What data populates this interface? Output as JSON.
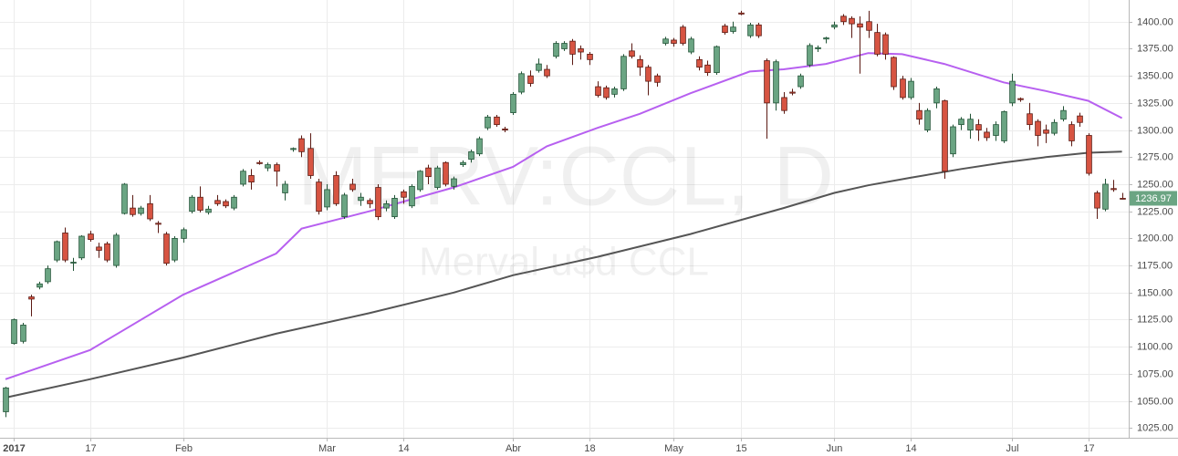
{
  "chart_data": {
    "type": "candlestick",
    "watermark": "MERV:CCL, D",
    "subtitle": "Merval u$d CCL",
    "up_color": "#6ba583",
    "down_color": "#d75442",
    "up_border": "#225437",
    "down_border": "#5b1a13",
    "grid": true,
    "xlim": [
      -0.65,
      132.8
    ],
    "ylim": [
      1016,
      1420
    ],
    "yticks": [
      {
        "value": 1025,
        "label": "1025.00"
      },
      {
        "value": 1050,
        "label": "1050.00"
      },
      {
        "value": 1075,
        "label": "1075.00"
      },
      {
        "value": 1100,
        "label": "1100.00"
      },
      {
        "value": 1125,
        "label": "1125.00"
      },
      {
        "value": 1150,
        "label": "1150.00"
      },
      {
        "value": 1175,
        "label": "1175.00"
      },
      {
        "value": 1200,
        "label": "1200.00"
      },
      {
        "value": 1225,
        "label": "1225.00"
      },
      {
        "value": 1250,
        "label": "1250.00"
      },
      {
        "value": 1275,
        "label": "1275.00"
      },
      {
        "value": 1300,
        "label": "1300.00"
      },
      {
        "value": 1325,
        "label": "1325.00"
      },
      {
        "value": 1350,
        "label": "1350.00"
      },
      {
        "value": 1375,
        "label": "1375.00"
      },
      {
        "value": 1400,
        "label": "1400.00"
      }
    ],
    "xticks": [
      {
        "value": 1,
        "label": "2017"
      },
      {
        "value": 10,
        "label": "17"
      },
      {
        "value": 21,
        "label": "Feb"
      },
      {
        "value": 38,
        "label": "Mar"
      },
      {
        "value": 47,
        "label": "14"
      },
      {
        "value": 60,
        "label": "Abr"
      },
      {
        "value": 69,
        "label": "18"
      },
      {
        "value": 79,
        "label": "May"
      },
      {
        "value": 87,
        "label": "15"
      },
      {
        "value": 98,
        "label": "Jun"
      },
      {
        "value": 107,
        "label": "14"
      },
      {
        "value": 119,
        "label": "Jul"
      },
      {
        "value": 128,
        "label": "17"
      }
    ],
    "open": [
      1040,
      1103,
      1105,
      1146,
      1155,
      1160,
      1180,
      1205,
      1178,
      1182,
      1204,
      1192,
      1195,
      1175,
      1223,
      1228,
      1223,
      1232,
      1214,
      1204,
      1180,
      1200,
      1225,
      1238,
      1224,
      1235,
      1234,
      1228,
      1250,
      1258,
      1270,
      1265,
      1268,
      1242,
      1282,
      1292,
      1283,
      1252,
      1229,
      1258,
      1220,
      1250,
      1235,
      1235,
      1247,
      1228,
      1220,
      1243,
      1230,
      1245,
      1265,
      1247,
      1270,
      1248,
      1268,
      1273,
      1278,
      1302,
      1312,
      1301,
      1316,
      1335,
      1350,
      1355,
      1356,
      1368,
      1375,
      1382,
      1375,
      1370,
      1340,
      1339,
      1333,
      1338,
      1373,
      1365,
      1358,
      1350,
      1380,
      1383,
      1395,
      1372,
      1365,
      1360,
      1353,
      1396,
      1391,
      1408,
      1387,
      1397,
      1364,
      1325,
      1330,
      1335,
      1340,
      1360,
      1375,
      1384,
      1395,
      1405,
      1403,
      1398,
      1400,
      1390,
      1388,
      1367,
      1347,
      1330,
      1318,
      1300,
      1325,
      1327,
      1278,
      1305,
      1300,
      1305,
      1298,
      1295,
      1290,
      1325,
      1329,
      1315,
      1308,
      1300,
      1297,
      1310,
      1305,
      1313,
      1295,
      1242,
      1227,
      1246,
      1237
    ],
    "high": [
      1063,
      1126,
      1122,
      1148,
      1160,
      1175,
      1198,
      1210,
      1182,
      1203,
      1207,
      1196,
      1197,
      1205,
      1251,
      1240,
      1230,
      1240,
      1216,
      1206,
      1202,
      1210,
      1240,
      1248,
      1230,
      1240,
      1236,
      1240,
      1264,
      1264,
      1272,
      1270,
      1270,
      1253,
      1284,
      1295,
      1297,
      1255,
      1250,
      1262,
      1242,
      1255,
      1242,
      1237,
      1250,
      1235,
      1240,
      1245,
      1250,
      1263,
      1268,
      1267,
      1271,
      1257,
      1272,
      1282,
      1294,
      1314,
      1314,
      1303,
      1335,
      1354,
      1355,
      1366,
      1360,
      1382,
      1382,
      1384,
      1378,
      1372,
      1345,
      1341,
      1340,
      1370,
      1380,
      1369,
      1360,
      1352,
      1386,
      1385,
      1397,
      1386,
      1368,
      1364,
      1378,
      1398,
      1400,
      1410,
      1399,
      1399,
      1366,
      1365,
      1335,
      1338,
      1352,
      1380,
      1378,
      1386,
      1400,
      1407,
      1405,
      1405,
      1410,
      1398,
      1390,
      1368,
      1350,
      1348,
      1325,
      1320,
      1340,
      1328,
      1305,
      1312,
      1315,
      1310,
      1302,
      1308,
      1318,
      1352,
      1330,
      1325,
      1310,
      1305,
      1310,
      1322,
      1308,
      1316,
      1297,
      1244,
      1255,
      1254,
      1242
    ],
    "low": [
      1035,
      1102,
      1103,
      1128,
      1153,
      1158,
      1178,
      1178,
      1170,
      1180,
      1197,
      1182,
      1178,
      1173,
      1222,
      1220,
      1221,
      1216,
      1205,
      1175,
      1178,
      1196,
      1223,
      1224,
      1222,
      1230,
      1228,
      1226,
      1248,
      1245,
      1268,
      1262,
      1248,
      1235,
      1280,
      1275,
      1255,
      1222,
      1226,
      1230,
      1218,
      1243,
      1230,
      1228,
      1217,
      1225,
      1218,
      1232,
      1228,
      1243,
      1250,
      1245,
      1248,
      1245,
      1266,
      1270,
      1276,
      1300,
      1303,
      1298,
      1314,
      1333,
      1340,
      1353,
      1348,
      1366,
      1373,
      1360,
      1365,
      1360,
      1330,
      1328,
      1330,
      1336,
      1366,
      1350,
      1332,
      1340,
      1378,
      1377,
      1378,
      1370,
      1355,
      1350,
      1351,
      1388,
      1389,
      1406,
      1385,
      1385,
      1292,
      1318,
      1315,
      1332,
      1338,
      1358,
      1372,
      1380,
      1393,
      1397,
      1385,
      1352,
      1385,
      1368,
      1365,
      1337,
      1328,
      1328,
      1305,
      1298,
      1320,
      1255,
      1275,
      1300,
      1292,
      1290,
      1290,
      1290,
      1288,
      1322,
      1326,
      1300,
      1285,
      1288,
      1295,
      1308,
      1285,
      1303,
      1258,
      1218,
      1225,
      1243,
      1236
    ],
    "close": [
      1062,
      1125,
      1120,
      1144,
      1158,
      1172,
      1197,
      1180,
      1178,
      1202,
      1199,
      1189,
      1180,
      1203,
      1250,
      1222,
      1228,
      1218,
      1213,
      1177,
      1200,
      1208,
      1238,
      1226,
      1227,
      1232,
      1230,
      1238,
      1262,
      1252,
      1269,
      1268,
      1262,
      1250,
      1283,
      1280,
      1258,
      1225,
      1245,
      1232,
      1240,
      1245,
      1238,
      1232,
      1220,
      1232,
      1237,
      1238,
      1248,
      1262,
      1257,
      1265,
      1250,
      1255,
      1270,
      1280,
      1292,
      1312,
      1305,
      1300,
      1333,
      1352,
      1343,
      1361,
      1350,
      1380,
      1380,
      1370,
      1372,
      1365,
      1332,
      1330,
      1338,
      1368,
      1368,
      1358,
      1345,
      1344,
      1384,
      1380,
      1380,
      1384,
      1358,
      1353,
      1377,
      1390,
      1395,
      1407,
      1397,
      1387,
      1325,
      1363,
      1318,
      1334,
      1350,
      1378,
      1376,
      1385,
      1397,
      1400,
      1398,
      1395,
      1392,
      1370,
      1370,
      1340,
      1330,
      1345,
      1310,
      1318,
      1338,
      1262,
      1303,
      1310,
      1310,
      1300,
      1293,
      1305,
      1317,
      1345,
      1328,
      1305,
      1295,
      1297,
      1307,
      1318,
      1290,
      1307,
      1260,
      1228,
      1250,
      1245,
      1236.97
    ],
    "lines": [
      {
        "color": "#b760f0",
        "x": [
          0,
          10,
          21,
          32,
          35,
          43,
          53,
          60,
          64,
          70,
          75,
          81,
          88,
          92,
          97,
          102,
          106,
          111,
          118,
          123,
          128,
          132
        ],
        "values": [
          1070,
          1097,
          1148,
          1186,
          1209,
          1225,
          1247,
          1266,
          1285,
          1302,
          1315,
          1334,
          1354,
          1356,
          1361,
          1371,
          1370,
          1361,
          1344,
          1336,
          1327,
          1311
        ]
      },
      {
        "color": "#555555",
        "x": [
          0,
          10,
          21,
          32,
          43,
          53,
          60,
          70,
          81,
          92,
          98,
          102,
          107,
          113,
          118,
          123,
          128,
          132
        ],
        "values": [
          1053,
          1070,
          1090,
          1112,
          1131,
          1150,
          1166,
          1183,
          1204,
          1228,
          1242,
          1249,
          1256,
          1264,
          1270,
          1275,
          1279,
          1280
        ]
      }
    ]
  }
}
